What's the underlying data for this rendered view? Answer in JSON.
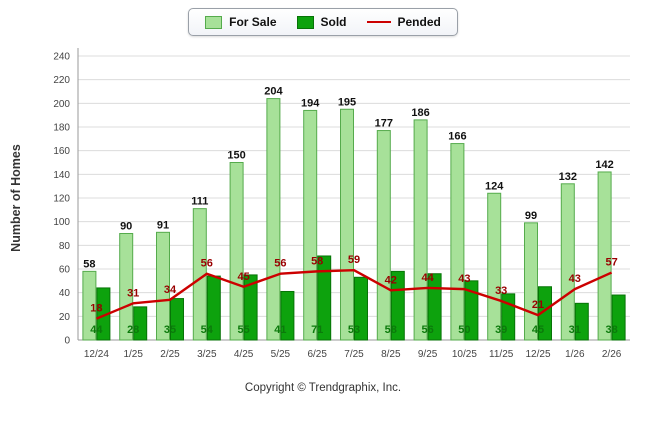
{
  "ylabel": "Number of Homes",
  "footer": "Copyright © Trendgraphix, Inc.",
  "chart_data": {
    "type": "bar",
    "categories": [
      "12/24",
      "1/25",
      "2/25",
      "3/25",
      "4/25",
      "5/25",
      "6/25",
      "7/25",
      "8/25",
      "9/25",
      "10/25",
      "11/25",
      "12/25",
      "1/26",
      "2/26"
    ],
    "series": [
      {
        "name": "For Sale",
        "type": "bar",
        "color": "#a7e199",
        "border": "#55ab4c",
        "label_color": "#111111",
        "values": [
          58,
          90,
          91,
          111,
          150,
          204,
          194,
          195,
          177,
          186,
          166,
          124,
          99,
          132,
          142
        ]
      },
      {
        "name": "Sold",
        "type": "bar",
        "color": "#0da20d",
        "border": "#077307",
        "label_color": "#0b7a0b",
        "values": [
          44,
          28,
          35,
          54,
          55,
          41,
          71,
          53,
          58,
          56,
          50,
          39,
          45,
          31,
          38
        ]
      },
      {
        "name": "Pended",
        "type": "line",
        "color": "#cc0000",
        "label_color": "#990000",
        "values": [
          18,
          31,
          34,
          56,
          45,
          56,
          58,
          59,
          42,
          44,
          43,
          33,
          21,
          43,
          57
        ]
      }
    ],
    "ylim": [
      0,
      240
    ],
    "ytick_step": 20,
    "grid": true,
    "legend_position": "top"
  }
}
